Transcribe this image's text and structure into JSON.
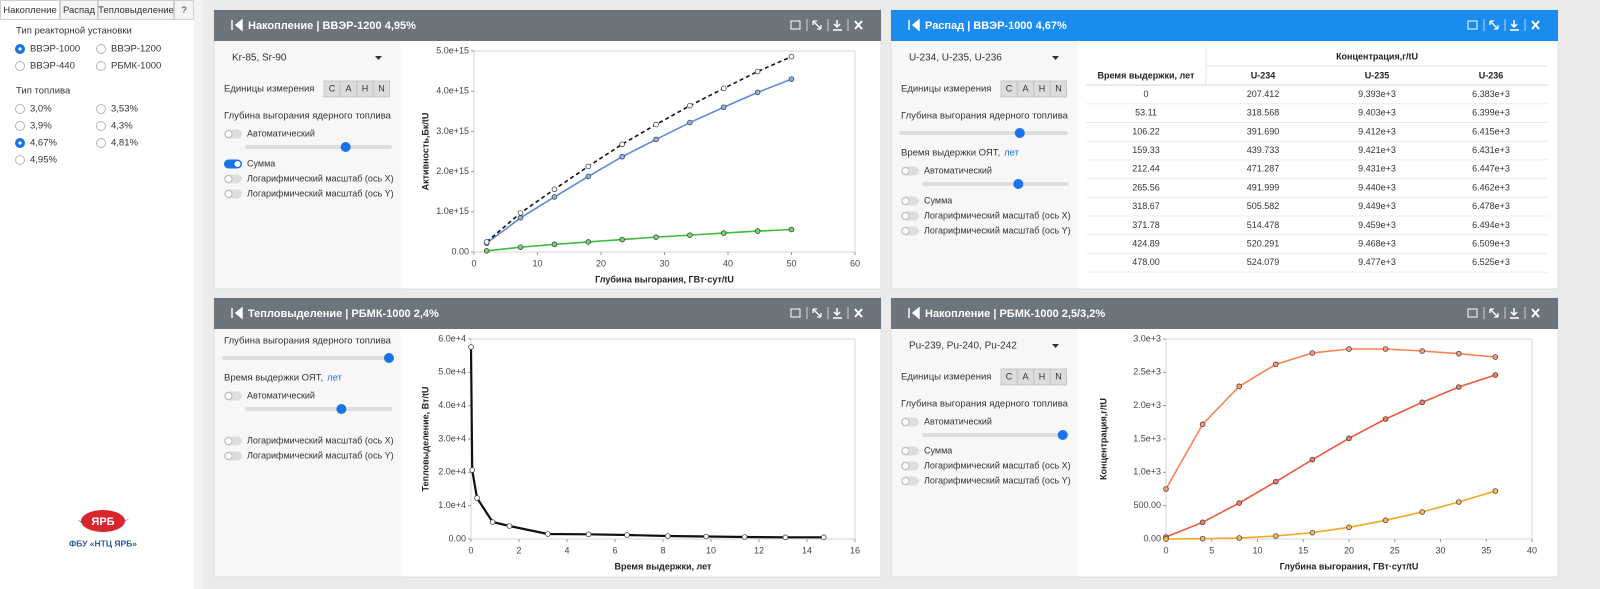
{
  "tabs": [
    "Накопление",
    "Распад",
    "Тепловыделение",
    "?"
  ],
  "sidebar": {
    "reactor_title": "Тип реакторной установки",
    "reactors": [
      "ВВЭР-1000",
      "ВВЭР-1200",
      "ВВЭР-440",
      "РБМК-1000"
    ],
    "reactor_selected": 0,
    "fuel_title": "Тип топлива",
    "fuels": [
      "3,0%",
      "3,53%",
      "3,9%",
      "4,3%",
      "4,67%",
      "4,81%",
      "4,95%"
    ],
    "fuel_selected": 4,
    "logo": "ЯРБ",
    "org": "ФБУ «НТЦ ЯРБ»"
  },
  "panels": [
    {
      "title": "Накопление | ВВЭР-1200 4,95%",
      "header_color": "#6d747b",
      "controls": [
        {
          "dropdown": "Kr-85, Sr-90"
        },
        {
          "label": "Единицы измерения",
          "buttons": [
            "C",
            "A",
            "H",
            "N"
          ]
        },
        {
          "label": "Глубина выгорания ядерного топлива"
        },
        {
          "toggle": "Автоматический",
          "on": false
        },
        {
          "toggle": "Сумма",
          "on": true
        },
        {
          "toggle": "Логарифмический масштаб (ось X)",
          "on": false
        },
        {
          "toggle": "Логарифмический масштаб (ось Y)",
          "on": false
        }
      ]
    },
    {
      "title": "Распад | ВВЭР-1000 4,67%",
      "header_color": "#1a8cf0",
      "controls": [
        {
          "dropdown": "U-234, U-235, U-236"
        },
        {
          "label": "Единицы измерения",
          "buttons": [
            "C",
            "A",
            "H",
            "N"
          ]
        },
        {
          "label": "Глубина выгорания ядерного топлива"
        },
        {
          "label": "Время выдержки ОЯТ,",
          "unit": "лет"
        },
        {
          "toggle": "Автоматический",
          "on": false
        },
        {
          "toggle": "Сумма",
          "on": false
        },
        {
          "toggle": "Логарифмический масштаб (ось X)",
          "on": false
        },
        {
          "toggle": "Логарифмический масштаб (ось Y)",
          "on": false
        }
      ]
    },
    {
      "title": "Тепловыделение | РБМК-1000 2,4%",
      "header_color": "#6d747b",
      "controls": [
        {
          "label": "Глубина выгорания ядерного топлива"
        },
        {
          "label": "Время выдержки ОЯТ,",
          "unit": "лет"
        },
        {
          "toggle": "Автоматический",
          "on": false
        },
        {
          "toggle": "Логарифмический масштаб (ось X)",
          "on": false
        },
        {
          "toggle": "Логарифмический масштаб (ось Y)",
          "on": false
        }
      ]
    },
    {
      "title": "Накопление | РБМК-1000 2,5/3,2%",
      "header_color": "#6d747b",
      "controls": [
        {
          "dropdown": "Pu-239, Pu-240, Pu-242"
        },
        {
          "label": "Единицы измерения",
          "buttons": [
            "C",
            "A",
            "H",
            "N"
          ]
        },
        {
          "label": "Глубина выгорания ядерного топлива"
        },
        {
          "toggle": "Автоматический",
          "on": false
        },
        {
          "toggle": "Сумма",
          "on": false
        },
        {
          "toggle": "Логарифмический масштаб (ось X)",
          "on": false
        },
        {
          "toggle": "Логарифмический масштаб (ось Y)",
          "on": false
        }
      ]
    }
  ],
  "table": {
    "group_header": "Концентрация,г/tU",
    "columns": [
      "Время выдержки, лет",
      "U-234",
      "U-235",
      "U-236"
    ],
    "rows": [
      [
        "0",
        "207.412",
        "9.393e+3",
        "6.383e+3"
      ],
      [
        "53.11",
        "318.568",
        "9.403e+3",
        "6.399e+3"
      ],
      [
        "106.22",
        "391.690",
        "9.412e+3",
        "6.415e+3"
      ],
      [
        "159.33",
        "439.733",
        "9.421e+3",
        "6.431e+3"
      ],
      [
        "212.44",
        "471.287",
        "9.431e+3",
        "6.447e+3"
      ],
      [
        "265.56",
        "491.999",
        "9.440e+3",
        "6.462e+3"
      ],
      [
        "318.67",
        "505.582",
        "9.449e+3",
        "6.478e+3"
      ],
      [
        "371.78",
        "514.478",
        "9.459e+3",
        "6.494e+3"
      ],
      [
        "424.89",
        "520.291",
        "9.468e+3",
        "6.509e+3"
      ],
      [
        "478.00",
        "524.079",
        "9.477e+3",
        "6.525e+3"
      ]
    ]
  },
  "chart_data": [
    {
      "type": "line",
      "xlabel": "Глубина выгорания, ГВт·сут/tU",
      "ylabel": "Активность,Бк/tU",
      "x": [
        2,
        7.33,
        12.67,
        18,
        23.33,
        28.67,
        34,
        39.33,
        44.67,
        50
      ],
      "series": [
        {
          "color": "#5b8bdc",
          "marker_fill": "#8fb0ea",
          "values": [
            220000000000000.0,
            850000000000000.0,
            1370000000000000.0,
            1880000000000000.0,
            2370000000000000.0,
            2800000000000000.0,
            3220000000000000.0,
            3600000000000000.0,
            3970000000000000.0,
            4300000000000000.0
          ]
        },
        {
          "color": "#3dbb3d",
          "marker_fill": "#6fd46f",
          "values": [
            30000000000000.0,
            120000000000000.0,
            190000000000000.0,
            250000000000000.0,
            310000000000000.0,
            370000000000000.0,
            420000000000000.0,
            470000000000000.0,
            520000000000000.0,
            560000000000000.0
          ]
        },
        {
          "color": "#111111",
          "marker_fill": "#ffffff",
          "dash": true,
          "values": [
            250000000000000.0,
            970000000000000.0,
            1560000000000000.0,
            2130000000000000.0,
            2680000000000000.0,
            3170000000000000.0,
            3640000000000000.0,
            4070000000000000.0,
            4490000000000000.0,
            4860000000000000.0
          ]
        }
      ],
      "xlim": [
        0,
        60
      ],
      "xticks": [
        0,
        10,
        20,
        30,
        40,
        50,
        60
      ],
      "ylim": [
        0,
        5000000000000000.0
      ],
      "yticks": [
        {
          "value": 0,
          "label": "0.00"
        },
        {
          "value": 1000000000000000.0,
          "label": "1.0e+15"
        },
        {
          "value": 2000000000000000.0,
          "label": "2.0e+15"
        },
        {
          "value": 3000000000000000.0,
          "label": "3.0e+15"
        },
        {
          "value": 4000000000000000.0,
          "label": "4.0e+15"
        },
        {
          "value": 5000000000000000.0,
          "label": "5.0e+15"
        }
      ],
      "grid": false
    },
    {
      "type": "line",
      "xlabel": "Время выдержки, лет",
      "ylabel": "Тепловыделение, Вт/tU",
      "x": [
        0,
        0.05,
        0.25,
        0.9,
        1.6,
        3.2,
        4.9,
        6.5,
        8.2,
        9.8,
        11.4,
        13.1,
        14.7
      ],
      "series": [
        {
          "color": "#111111",
          "marker_fill": "#ffffff",
          "width": 2.2,
          "values": [
            57600,
            20700,
            12300,
            5100,
            3900,
            1500,
            1400,
            1200,
            900,
            750,
            600,
            500,
            500
          ]
        }
      ],
      "xlim": [
        0,
        16
      ],
      "xticks": [
        0,
        2,
        4,
        6,
        8,
        10,
        12,
        14,
        16
      ],
      "ylim": [
        0,
        60000
      ],
      "yticks": [
        {
          "value": 0,
          "label": "0.00"
        },
        {
          "value": 10000,
          "label": "1.0e+4"
        },
        {
          "value": 20000,
          "label": "2.0e+4"
        },
        {
          "value": 30000,
          "label": "3.0e+4"
        },
        {
          "value": 40000,
          "label": "4.0e+4"
        },
        {
          "value": 50000,
          "label": "5.0e+4"
        },
        {
          "value": 60000,
          "label": "6.0e+4"
        }
      ],
      "grid": false
    },
    {
      "type": "line",
      "xlabel": "Глубина выгорания, ГВт·сут/tU",
      "ylabel": "Концентрация,г/tU",
      "x": [
        0,
        4,
        8,
        12,
        16,
        20,
        24,
        28,
        32,
        36
      ],
      "series": [
        {
          "color": "#ff7f50",
          "marker_fill": "#ff9a74",
          "values": [
            750,
            1720,
            2290,
            2620,
            2790,
            2850,
            2850,
            2820,
            2780,
            2730
          ]
        },
        {
          "color": "#f0583c",
          "marker_fill": "#f47a62",
          "values": [
            30,
            250,
            540,
            860,
            1190,
            1510,
            1800,
            2050,
            2280,
            2460
          ]
        },
        {
          "color": "#f5a623",
          "marker_fill": "#f8bd58",
          "values": [
            0,
            5,
            15,
            45,
            95,
            175,
            280,
            405,
            555,
            720
          ]
        }
      ],
      "xlim": [
        0,
        40
      ],
      "xticks": [
        0,
        5,
        10,
        15,
        20,
        25,
        30,
        35,
        40
      ],
      "ylim": [
        0,
        3000
      ],
      "yticks": [
        {
          "value": 0,
          "label": "0.00"
        },
        {
          "value": 500,
          "label": "500.00"
        },
        {
          "value": 1000,
          "label": "1.0e+3"
        },
        {
          "value": 1500,
          "label": "1.5e+3"
        },
        {
          "value": 2000,
          "label": "2.0e+3"
        },
        {
          "value": 2500,
          "label": "2.5e+3"
        },
        {
          "value": 3000,
          "label": "3.0e+3"
        }
      ],
      "grid": false
    }
  ]
}
